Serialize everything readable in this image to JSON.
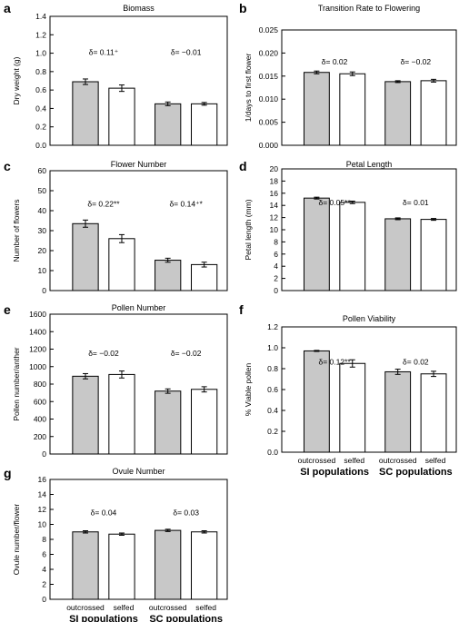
{
  "colors": {
    "outcrossed": "#c8c8c8",
    "selfed": "#ffffff",
    "stroke": "#000000"
  },
  "chart_data": [
    {
      "panel": "a",
      "type": "bar",
      "title": "Biomass",
      "ylabel": "Dry weight (g)",
      "ylim": [
        0,
        1.4
      ],
      "yticks": [
        "0.0",
        "0.2",
        "0.4",
        "0.6",
        "0.8",
        "1.0",
        "1.2",
        "1.4"
      ],
      "categories": [
        "outcrossed",
        "selfed"
      ],
      "groups": [
        {
          "values": [
            0.69,
            0.62
          ],
          "errors": [
            0.03,
            0.035
          ],
          "annotation": "δ= 0.11⁺"
        },
        {
          "values": [
            0.45,
            0.45
          ],
          "errors": [
            0.02,
            0.015
          ],
          "annotation": "δ= −0.01"
        }
      ]
    },
    {
      "panel": "b",
      "type": "bar",
      "title": "Transition Rate to Flowering",
      "ylabel": "1/days to first flower",
      "ylim": [
        0,
        0.025
      ],
      "yticks": [
        "0.000",
        "0.005",
        "0.010",
        "0.015",
        "0.020",
        "0.025"
      ],
      "categories": [
        "outcrossed",
        "selfed"
      ],
      "groups": [
        {
          "values": [
            0.0158,
            0.0155
          ],
          "errors": [
            0.0003,
            0.0004
          ],
          "annotation": "δ= 0.02"
        },
        {
          "values": [
            0.0138,
            0.014
          ],
          "errors": [
            0.0002,
            0.0003
          ],
          "annotation": "δ= −0.02"
        }
      ]
    },
    {
      "panel": "c",
      "type": "bar",
      "title": "Flower Number",
      "ylabel": "Number of flowers",
      "ylim": [
        0,
        60
      ],
      "yticks": [
        "0",
        "10",
        "20",
        "30",
        "40",
        "50",
        "60"
      ],
      "categories": [
        "outcrossed",
        "selfed"
      ],
      "groups": [
        {
          "values": [
            33.5,
            26
          ],
          "errors": [
            1.8,
            2.0
          ],
          "annotation": "δ= 0.22**"
        },
        {
          "values": [
            15.2,
            13
          ],
          "errors": [
            1.0,
            1.2
          ],
          "annotation": "δ= 0.14⁺*"
        }
      ]
    },
    {
      "panel": "d",
      "type": "bar",
      "title": "Petal Length",
      "ylabel": "Petal length (mm)",
      "ylim": [
        0,
        20
      ],
      "yticks": [
        "0",
        "2",
        "4",
        "6",
        "8",
        "10",
        "12",
        "14",
        "16",
        "18",
        "20"
      ],
      "categories": [
        "outcrossed",
        "selfed"
      ],
      "groups": [
        {
          "values": [
            15.2,
            14.5
          ],
          "errors": [
            0.15,
            0.2
          ],
          "annotation": "δ= 0.05**"
        },
        {
          "values": [
            11.8,
            11.7
          ],
          "errors": [
            0.15,
            0.15
          ],
          "annotation": "δ= 0.01"
        }
      ]
    },
    {
      "panel": "e",
      "type": "bar",
      "title": "Pollen Number",
      "ylabel": "Pollen number/anther",
      "ylim": [
        0,
        1600
      ],
      "yticks": [
        "0",
        "200",
        "400",
        "600",
        "800",
        "1000",
        "1200",
        "1400",
        "1600"
      ],
      "categories": [
        "outcrossed",
        "selfed"
      ],
      "groups": [
        {
          "values": [
            890,
            910
          ],
          "errors": [
            30,
            40
          ],
          "annotation": "δ= −0.02"
        },
        {
          "values": [
            720,
            740
          ],
          "errors": [
            25,
            30
          ],
          "annotation": "δ= −0.02"
        }
      ]
    },
    {
      "panel": "f",
      "type": "bar",
      "title": "Pollen Viability",
      "ylabel": "% Viable pollen",
      "ylim": [
        0,
        1.2
      ],
      "yticks": [
        "0.0",
        "0.2",
        "0.4",
        "0.6",
        "0.8",
        "1.0",
        "1.2"
      ],
      "categories": [
        "outcrossed",
        "selfed"
      ],
      "groups": [
        {
          "values": [
            0.97,
            0.85
          ],
          "errors": [
            0.005,
            0.035
          ],
          "annotation": "δ= 0.12**"
        },
        {
          "values": [
            0.77,
            0.75
          ],
          "errors": [
            0.025,
            0.025
          ],
          "annotation": "δ= 0.02"
        }
      ],
      "xlabels": {
        "categories": [
          "outcrossed",
          "selfed"
        ],
        "groups": [
          "SI populations",
          "SC populations"
        ]
      }
    },
    {
      "panel": "g",
      "type": "bar",
      "title": "Ovule Number",
      "ylabel": "Ovule number/flower",
      "ylim": [
        0,
        16
      ],
      "yticks": [
        "0",
        "2",
        "4",
        "6",
        "8",
        "10",
        "12",
        "14",
        "16"
      ],
      "categories": [
        "outcrossed",
        "selfed"
      ],
      "groups": [
        {
          "values": [
            9.0,
            8.7
          ],
          "errors": [
            0.15,
            0.15
          ],
          "annotation": "δ= 0.04"
        },
        {
          "values": [
            9.2,
            9.0
          ],
          "errors": [
            0.15,
            0.15
          ],
          "annotation": "δ= 0.03"
        }
      ],
      "xlabels": {
        "categories": [
          "outcrossed",
          "selfed"
        ],
        "groups": [
          "SI populations",
          "SC populations"
        ]
      }
    }
  ]
}
